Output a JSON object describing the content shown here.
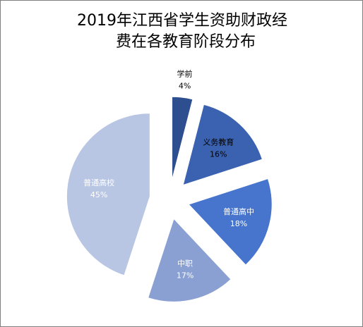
{
  "chart_data": {
    "type": "pie",
    "title_lines": [
      "2019年江西省学生资助财政经",
      "费在各教育阶段分布"
    ],
    "categories": [
      "学前",
      "义务教育",
      "普通高中",
      "中职",
      "普通高校"
    ],
    "values": [
      4,
      16,
      18,
      17,
      45
    ],
    "percent_labels": [
      "4%",
      "16%",
      "18%",
      "17%",
      "45%"
    ],
    "colors": [
      "#2e4f8f",
      "#3a62b0",
      "#4774cc",
      "#8aa0d2",
      "#b8c5e3"
    ],
    "label_colors": [
      "#000000",
      "#000000",
      "#ffffff",
      "#ffffff",
      "#ffffff"
    ],
    "exploded": true,
    "legend": "none"
  }
}
